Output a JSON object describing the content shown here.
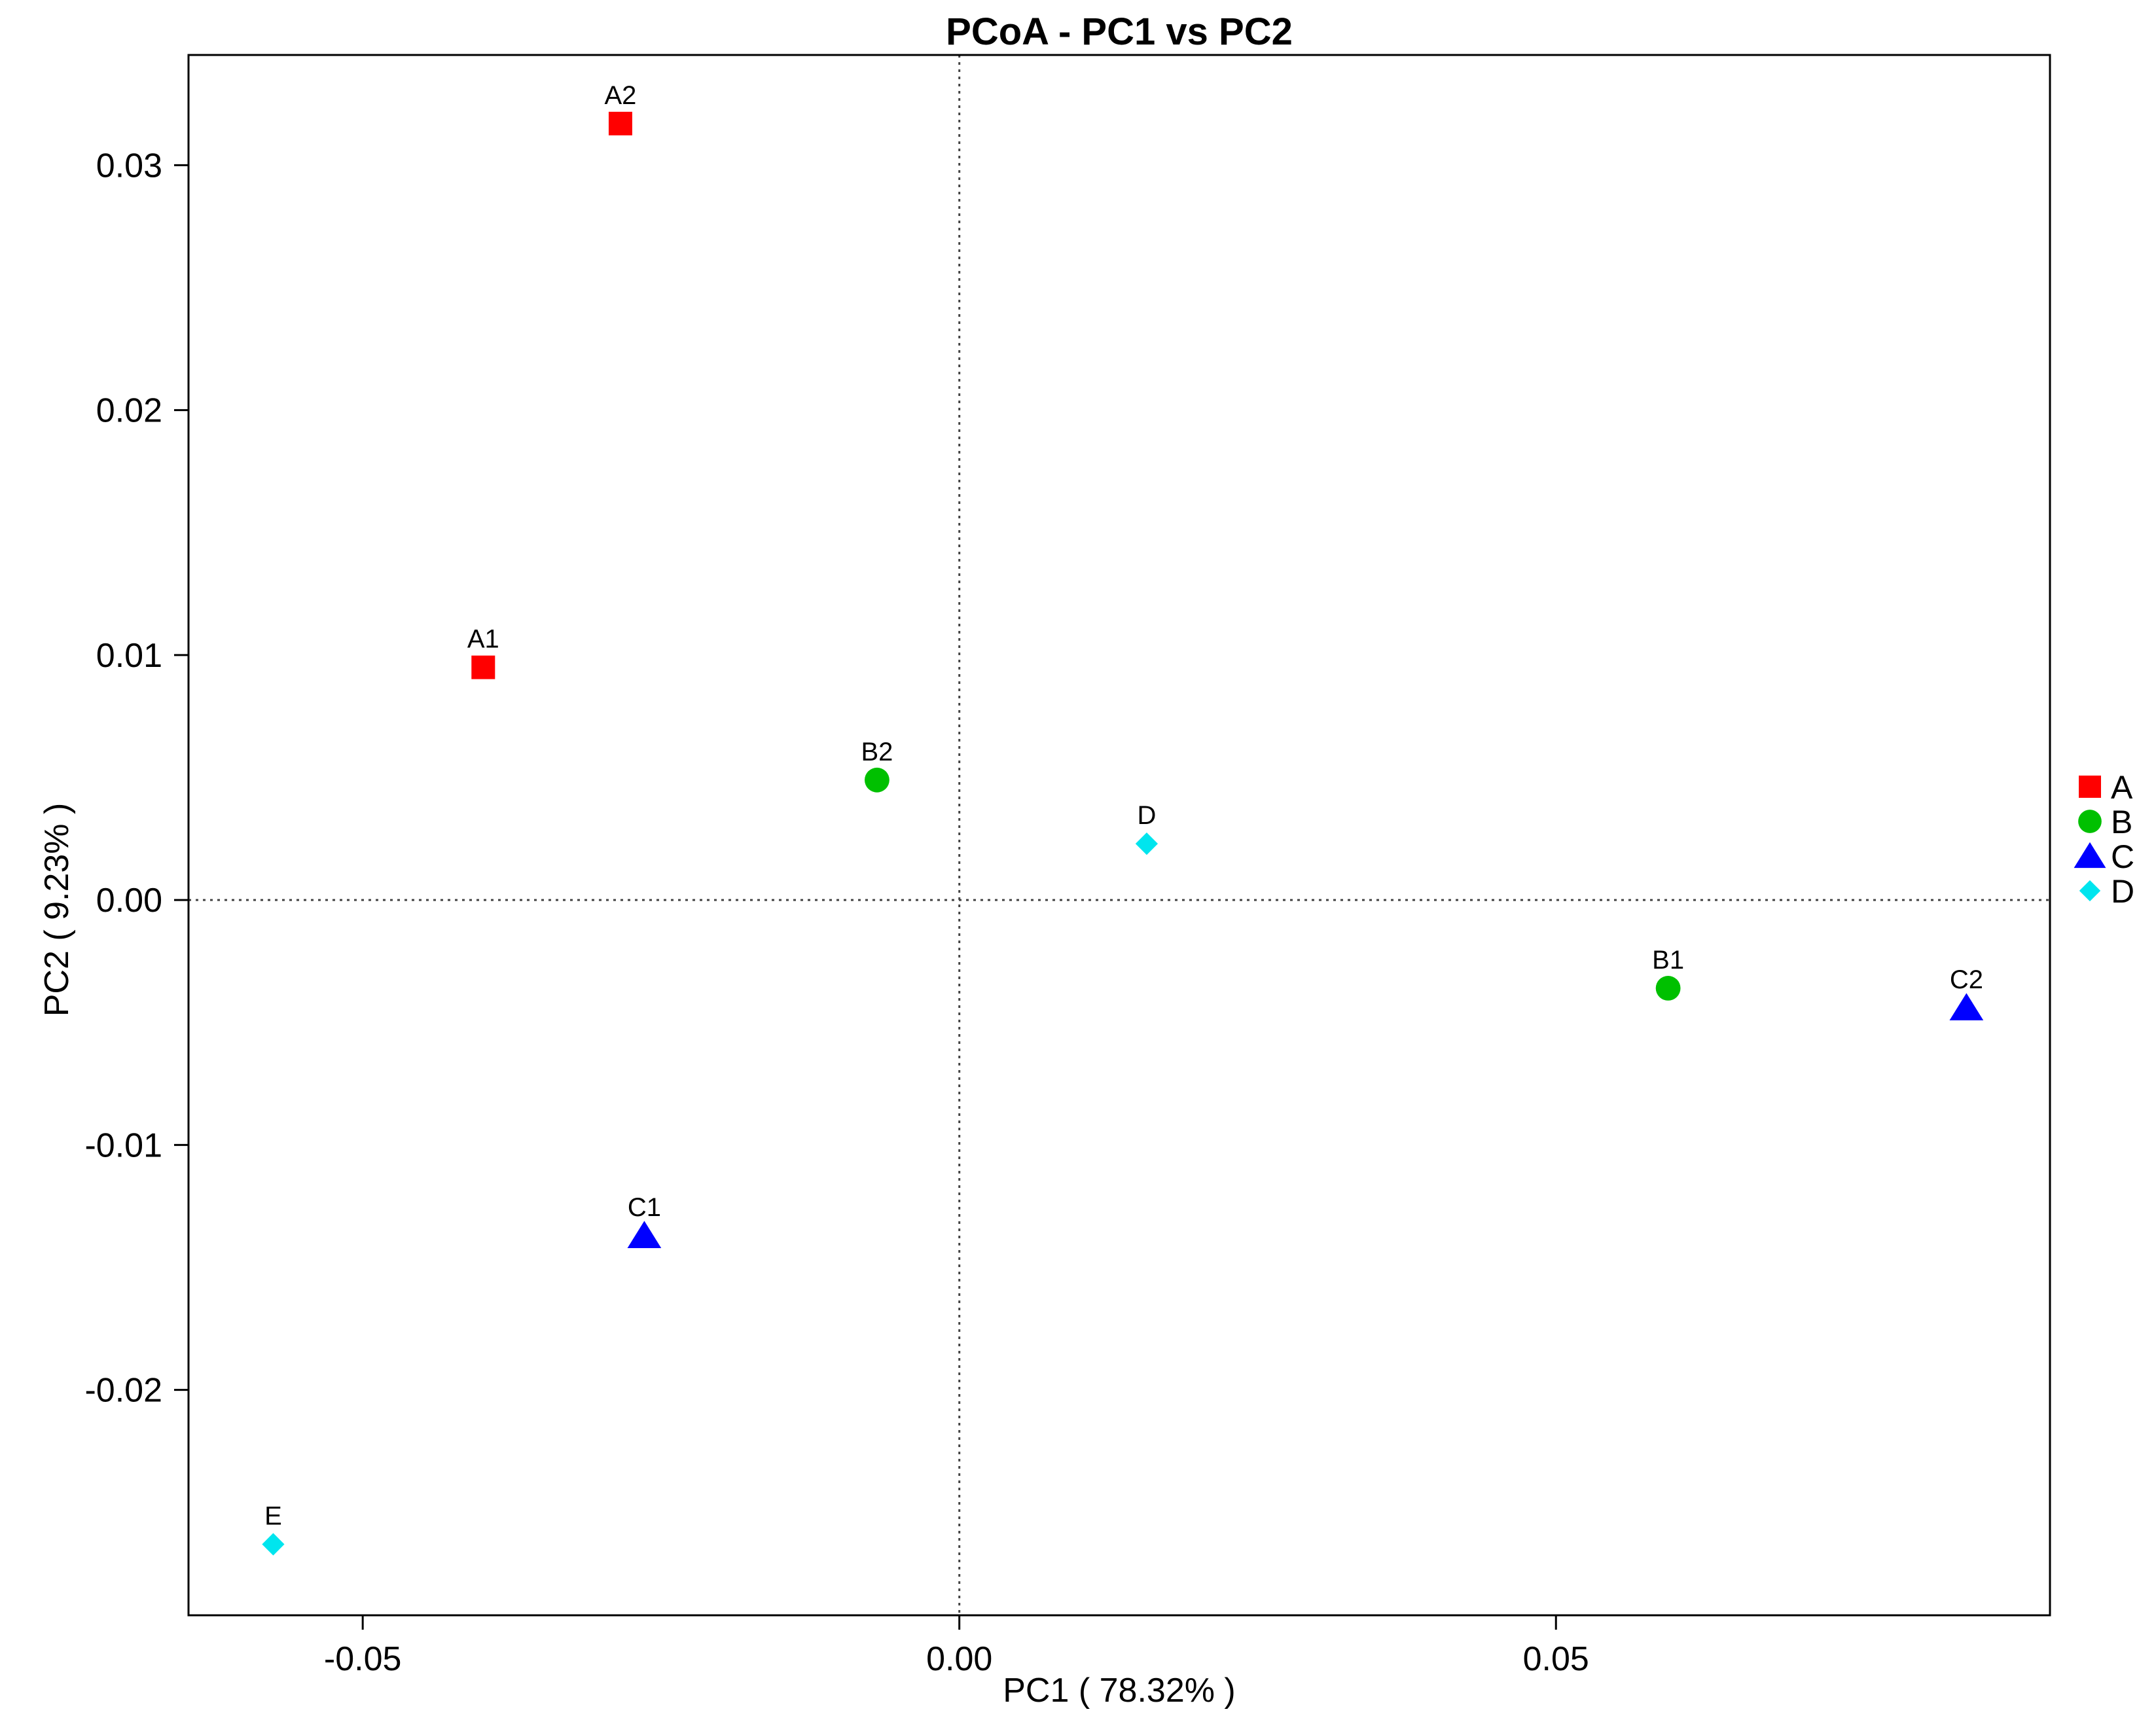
{
  "chart_data": {
    "type": "scatter",
    "title": "PCoA - PC1 vs PC2",
    "xlabel": "PC1 ( 78.32% )",
    "ylabel": "PC2 ( 9.23% )",
    "xlim": [
      -0.0646,
      0.0914
    ],
    "ylim": [
      -0.0292,
      0.0345
    ],
    "xticks": [
      {
        "value": -0.05,
        "label": "-0.05"
      },
      {
        "value": 0.0,
        "label": "0.00"
      },
      {
        "value": 0.05,
        "label": "0.05"
      }
    ],
    "yticks": [
      {
        "value": 0.03,
        "label": "0.03"
      },
      {
        "value": 0.02,
        "label": "0.02"
      },
      {
        "value": 0.01,
        "label": "0.01"
      },
      {
        "value": 0.0,
        "label": "0.00"
      },
      {
        "value": -0.01,
        "label": "-0.01"
      },
      {
        "value": -0.02,
        "label": "-0.02"
      }
    ],
    "reference_lines": {
      "x": 0,
      "y": 0,
      "style": "dotted"
    },
    "grid": false,
    "legend_position": "right",
    "series": [
      {
        "name": "A",
        "marker": "square",
        "color": "#ff0000",
        "points": [
          {
            "label": "A1",
            "x": -0.0399,
            "y": 0.0095
          },
          {
            "label": "A2",
            "x": -0.0284,
            "y": 0.0317
          }
        ]
      },
      {
        "name": "B",
        "marker": "circle",
        "color": "#00c000",
        "points": [
          {
            "label": "B1",
            "x": 0.0594,
            "y": -0.0036
          },
          {
            "label": "B2",
            "x": -0.0069,
            "y": 0.0049
          }
        ]
      },
      {
        "name": "C",
        "marker": "triangle",
        "color": "#0000ff",
        "points": [
          {
            "label": "C1",
            "x": -0.0264,
            "y": -0.0137
          },
          {
            "label": "C2",
            "x": 0.0844,
            "y": -0.0044
          }
        ]
      },
      {
        "name": "D",
        "marker": "diamond",
        "color": "#00e5ee",
        "points": [
          {
            "label": "D",
            "x": 0.0157,
            "y": 0.0023
          },
          {
            "label": "E",
            "x": -0.0575,
            "y": -0.0263
          }
        ]
      }
    ]
  }
}
